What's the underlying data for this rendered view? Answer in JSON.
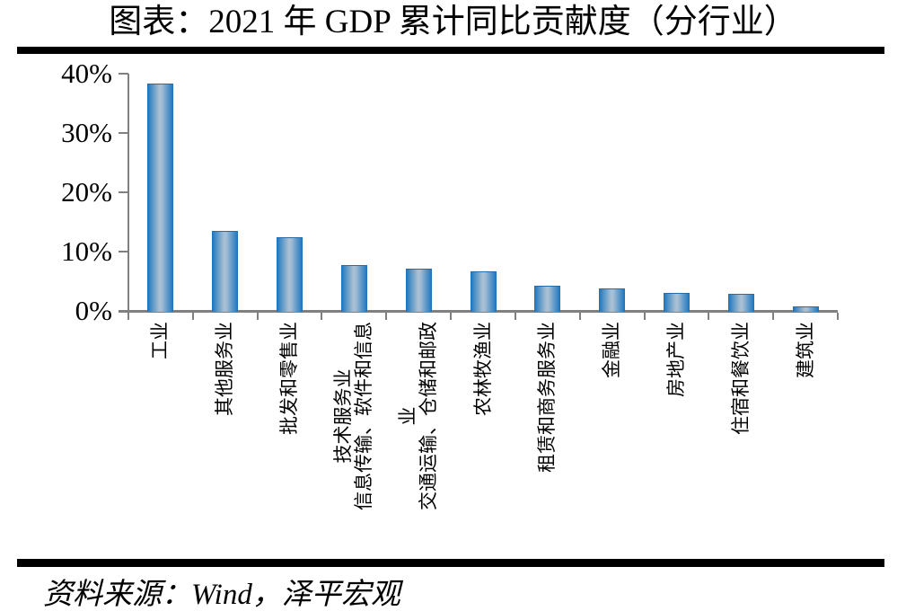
{
  "title": "图表：2021 年 GDP 累计同比贡献度（分行业）",
  "source_note": "资料来源：Wind，泽平宏观",
  "colors": {
    "bar_edge": "#1b6fb5",
    "bar_center": "#a9bfd3",
    "axis": "#808080",
    "divider": "#000000",
    "text": "#000000",
    "background": "#ffffff"
  },
  "chart_data": {
    "type": "bar",
    "title": "图表：2021 年 GDP 累计同比贡献度（分行业）",
    "categories": [
      "工业",
      "其他服务业",
      "批发和零售业",
      "信息传输、软件和信息\n技术服务业",
      "交通运输、仓储和邮政\n业",
      "农林牧渔业",
      "租赁和商务服务业",
      "金融业",
      "房地产业",
      "住宿和餐饮业",
      "建筑业"
    ],
    "values": [
      38.3,
      13.4,
      12.4,
      7.7,
      7.1,
      6.6,
      4.2,
      3.8,
      3.0,
      2.8,
      0.8
    ],
    "unit": "%",
    "xlabel": "",
    "ylabel": "",
    "ylim": [
      0,
      40
    ],
    "ytick_step": 10,
    "ytick_labels": [
      "0%",
      "10%",
      "20%",
      "30%",
      "40%"
    ],
    "grid": false,
    "legend": null,
    "bar_orientation": "vertical",
    "x_label_rotation_deg": -90
  }
}
